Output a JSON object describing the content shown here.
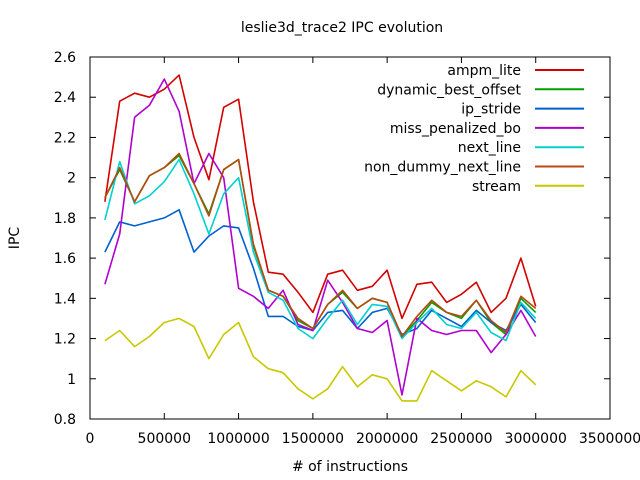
{
  "chart_data": {
    "type": "line",
    "title": "leslie3d_trace2 IPC evolution",
    "xlabel": "# of instructions",
    "ylabel": "IPC",
    "xlim": [
      0,
      3500000
    ],
    "ylim": [
      0.8,
      2.6
    ],
    "xticks": [
      0,
      500000,
      1000000,
      1500000,
      2000000,
      2500000,
      3000000,
      3500000
    ],
    "yticks": [
      0.8,
      1,
      1.2,
      1.4,
      1.6,
      1.8,
      2,
      2.2,
      2.4,
      2.6
    ],
    "grid": false,
    "legend_position": "top-right",
    "x": [
      100000,
      200000,
      300000,
      400000,
      500000,
      600000,
      700000,
      800000,
      900000,
      1000000,
      1100000,
      1200000,
      1300000,
      1400000,
      1500000,
      1600000,
      1700000,
      1800000,
      1900000,
      2000000,
      2100000,
      2200000,
      2300000,
      2400000,
      2500000,
      2600000,
      2700000,
      2800000,
      2900000,
      3000000
    ],
    "series": [
      {
        "name": "ampm_lite",
        "color": "#d40000",
        "values": [
          1.88,
          2.38,
          2.42,
          2.4,
          2.44,
          2.51,
          2.2,
          1.99,
          2.35,
          2.39,
          1.88,
          1.53,
          1.52,
          1.43,
          1.33,
          1.52,
          1.54,
          1.44,
          1.46,
          1.54,
          1.3,
          1.47,
          1.48,
          1.38,
          1.42,
          1.48,
          1.33,
          1.4,
          1.6,
          1.36
        ]
      },
      {
        "name": "dynamic_best_offset",
        "color": "#00a000",
        "values": [
          1.9,
          2.04,
          1.88,
          2.01,
          2.05,
          2.11,
          1.97,
          1.82,
          2.04,
          2.09,
          1.66,
          1.44,
          1.41,
          1.29,
          1.25,
          1.37,
          1.43,
          1.35,
          1.4,
          1.38,
          1.21,
          1.29,
          1.38,
          1.33,
          1.3,
          1.39,
          1.28,
          1.22,
          1.4,
          1.33
        ]
      },
      {
        "name": "ip_stride",
        "color": "#0060d0",
        "values": [
          1.63,
          1.78,
          1.76,
          1.78,
          1.8,
          1.84,
          1.63,
          1.71,
          1.76,
          1.75,
          1.55,
          1.31,
          1.31,
          1.26,
          1.24,
          1.33,
          1.34,
          1.25,
          1.33,
          1.35,
          1.22,
          1.25,
          1.34,
          1.3,
          1.26,
          1.34,
          1.28,
          1.24,
          1.37,
          1.28
        ]
      },
      {
        "name": "miss_penalized_bo",
        "color": "#b000d0",
        "values": [
          1.47,
          1.72,
          2.3,
          2.36,
          2.49,
          2.33,
          1.97,
          2.12,
          2.0,
          1.45,
          1.41,
          1.35,
          1.44,
          1.27,
          1.24,
          1.49,
          1.38,
          1.25,
          1.23,
          1.29,
          0.92,
          1.3,
          1.24,
          1.22,
          1.24,
          1.24,
          1.13,
          1.22,
          1.34,
          1.21
        ]
      },
      {
        "name": "next_line",
        "color": "#00d0d0",
        "values": [
          1.79,
          2.08,
          1.87,
          1.91,
          1.98,
          2.09,
          1.92,
          1.72,
          1.92,
          2.0,
          1.63,
          1.43,
          1.39,
          1.25,
          1.2,
          1.3,
          1.39,
          1.27,
          1.37,
          1.36,
          1.2,
          1.28,
          1.35,
          1.27,
          1.25,
          1.33,
          1.23,
          1.19,
          1.38,
          1.3
        ]
      },
      {
        "name": "non_dummy_next_line",
        "color": "#b84a10",
        "values": [
          1.9,
          2.05,
          1.88,
          2.01,
          2.05,
          2.12,
          1.97,
          1.81,
          2.04,
          2.09,
          1.67,
          1.44,
          1.41,
          1.3,
          1.25,
          1.37,
          1.44,
          1.35,
          1.4,
          1.38,
          1.21,
          1.31,
          1.39,
          1.33,
          1.31,
          1.39,
          1.29,
          1.23,
          1.41,
          1.35
        ]
      },
      {
        "name": "stream",
        "color": "#c8c800",
        "values": [
          1.19,
          1.24,
          1.16,
          1.21,
          1.28,
          1.3,
          1.26,
          1.1,
          1.22,
          1.28,
          1.11,
          1.05,
          1.03,
          0.95,
          0.9,
          0.95,
          1.06,
          0.96,
          1.02,
          1.0,
          0.89,
          0.89,
          1.04,
          0.99,
          0.94,
          0.99,
          0.96,
          0.91,
          1.04,
          0.97
        ]
      }
    ]
  }
}
